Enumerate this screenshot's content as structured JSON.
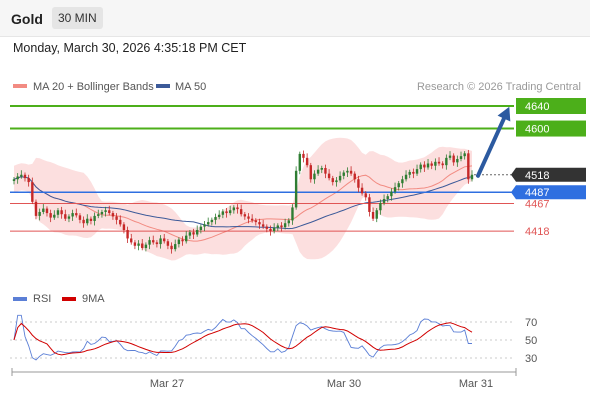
{
  "header": {
    "instrument": "Gold",
    "timeframe": "30 MIN",
    "timestamp": "Monday, March 30, 2026 4:35:18 PM CET"
  },
  "legend": {
    "ma20": "MA 20 + Bollinger Bands",
    "ma50": "MA 50",
    "ma20_color": "#f28b82",
    "ma50_color": "#3c5a99",
    "credit": "Research © 2026 Trading Central"
  },
  "colors": {
    "up": "#2e7d32",
    "down": "#c62828",
    "band": "#fbd9d9",
    "resistance": "#4caf1a",
    "support": "#e05555",
    "pivot": "#2f6fe0",
    "arrow": "#2c5aa0",
    "last": "#333333"
  },
  "chart_data": [
    {
      "type": "candlestick",
      "x_labels": [
        "Mar 27",
        "Mar 30",
        "Mar 31"
      ],
      "price": {
        "min": 4360,
        "max": 4660
      },
      "levels": [
        {
          "value": 4640,
          "label": "4640",
          "kind": "resistance"
        },
        {
          "value": 4600,
          "label": "4600",
          "kind": "resistance"
        },
        {
          "value": 4518,
          "label": "4518",
          "kind": "last"
        },
        {
          "value": 4487,
          "label": "4487",
          "kind": "pivot"
        },
        {
          "value": 4467,
          "label": "4467",
          "kind": "support"
        },
        {
          "value": 4418,
          "label": "4418",
          "kind": "support"
        }
      ],
      "arrow": {
        "from": 4518,
        "to": 4640
      },
      "close": [
        4510,
        4515,
        4518,
        4512,
        4505,
        4470,
        4445,
        4452,
        4458,
        4450,
        4442,
        4447,
        4455,
        4448,
        4440,
        4444,
        4450,
        4446,
        4438,
        4432,
        4440,
        4436,
        4445,
        4448,
        4452,
        4455,
        4450,
        4444,
        4438,
        4430,
        4420,
        4405,
        4398,
        4392,
        4396,
        4388,
        4394,
        4402,
        4398,
        4395,
        4405,
        4400,
        4392,
        4386,
        4395,
        4403,
        4400,
        4410,
        4416,
        4412,
        4420,
        4426,
        4430,
        4434,
        4438,
        4443,
        4447,
        4453,
        4450,
        4455,
        4460,
        4457,
        4448,
        4444,
        4440,
        4437,
        4434,
        4430,
        4426,
        4422,
        4418,
        4424,
        4428,
        4425,
        4432,
        4437,
        4460,
        4525,
        4555,
        4548,
        4535,
        4510,
        4520,
        4527,
        4530,
        4520,
        4512,
        4505,
        4508,
        4516,
        4522,
        4525,
        4520,
        4510,
        4495,
        4485,
        4478,
        4452,
        4440,
        4455,
        4468,
        4475,
        4480,
        4488,
        4496,
        4503,
        4510,
        4518,
        4523,
        4520,
        4528,
        4536,
        4531,
        4538,
        4534,
        4541,
        4538,
        4535,
        4548,
        4552,
        4540,
        4546,
        4551,
        4556,
        4510,
        4518
      ],
      "rsi": {
        "ticks": [
          70,
          50,
          30
        ],
        "min": 20,
        "max": 80,
        "legend": [
          "RSI",
          "9MA"
        ],
        "colors": [
          "#5b7fd6",
          "#d10000"
        ]
      }
    }
  ]
}
